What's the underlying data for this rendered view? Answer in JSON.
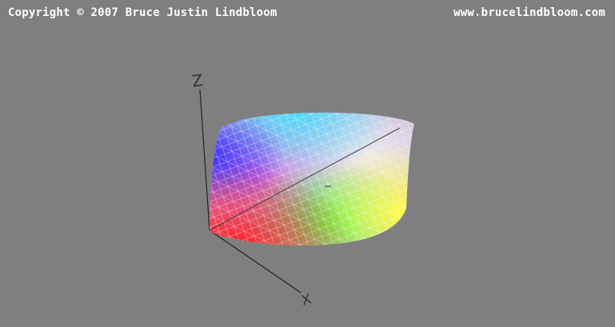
{
  "header": {
    "copyright": "Copyright © 2007 Bruce Justin Lindbloom",
    "website": "www.brucelindbloom.com"
  },
  "axes": {
    "z_label": "Z",
    "x_label": "X"
  },
  "colors": {
    "background": "#7f7f7f",
    "axis": "#222222",
    "label": "#333333"
  },
  "gamut": {
    "description_icon": "color-gamut-wireframe",
    "palette": [
      "#ff0000",
      "#ffff00",
      "#00ff00",
      "#00ffff",
      "#0000ff",
      "#ff00ff"
    ]
  }
}
